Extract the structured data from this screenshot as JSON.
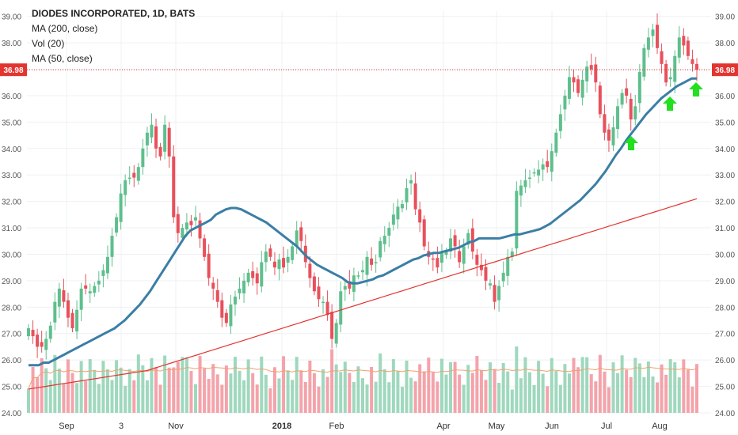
{
  "legend": {
    "title": "DIODES INCORPORATED, 1D, BATS",
    "ma200": "MA (200, close)",
    "vol": "Vol (20)",
    "ma50": "MA (50, close)"
  },
  "colors": {
    "up": "#5ebf8d",
    "down": "#e8505b",
    "vol_up": "#9fd8bd",
    "vol_down": "#f4a3aa",
    "ma50": "#3b7ea5",
    "ma200": "#e3342f",
    "vol_ma": "#f0a070",
    "last_price": "#e3342f",
    "arrow": "#22e01f",
    "grid": "#eef0f3"
  },
  "chart_data": {
    "type": "candlestick",
    "title": "DIODES INCORPORATED, 1D, BATS",
    "y_ticks": [
      "24.00",
      "25.00",
      "26.00",
      "27.00",
      "28.00",
      "29.00",
      "30.00",
      "31.00",
      "32.00",
      "33.00",
      "34.00",
      "35.00",
      "36.00",
      "37.00",
      "38.00",
      "39.00"
    ],
    "ylim": [
      24,
      39.2
    ],
    "x_ticks": [
      "Sep",
      "3",
      "Nov",
      "2018",
      "Feb",
      "Apr",
      "May",
      "Jun",
      "Jul",
      "Aug"
    ],
    "last_price": 36.98,
    "last_price_label": "36.98",
    "close": [
      27.2,
      26.9,
      26.5,
      26.5,
      26.8,
      27.3,
      28.2,
      28.7,
      28.2,
      27.6,
      27.2,
      27.9,
      28.7,
      28.7,
      28.6,
      28.8,
      29.0,
      29.4,
      29.9,
      30.7,
      31.4,
      32.3,
      32.8,
      32.9,
      32.9,
      33.3,
      34.0,
      34.6,
      34.9,
      34.0,
      33.7,
      34.9,
      33.7,
      31.4,
      30.8,
      31.0,
      31.2,
      31.1,
      31.4,
      30.6,
      29.9,
      29.1,
      28.7,
      28.2,
      27.6,
      27.4,
      28.1,
      28.4,
      28.7,
      29.0,
      29.3,
      29.1,
      28.9,
      29.7,
      30.1,
      29.9,
      29.5,
      29.8,
      29.5,
      29.9,
      30.3,
      30.9,
      30.5,
      29.7,
      29.1,
      28.6,
      28.3,
      28.2,
      27.7,
      26.8,
      27.4,
      28.6,
      28.8,
      28.7,
      29.2,
      29.2,
      29.4,
      29.9,
      29.6,
      29.7,
      30.5,
      30.7,
      31.0,
      31.5,
      31.8,
      31.9,
      32.5,
      32.8,
      31.7,
      31.2,
      30.3,
      29.9,
      29.8,
      29.5,
      30.1,
      30.1,
      30.6,
      30.3,
      29.7,
      30.3,
      30.8,
      30.1,
      29.6,
      29.4,
      29.0,
      28.9,
      28.2,
      28.8,
      29.3,
      29.9,
      30.1,
      32.4,
      32.6,
      32.8,
      32.9,
      33.1,
      33.2,
      33.4,
      33.3,
      33.9,
      34.6,
      35.3,
      36.0,
      36.7,
      36.5,
      36.1,
      36.6,
      37.1,
      37.0,
      36.5,
      35.3,
      34.6,
      34.3,
      34.8,
      35.6,
      36.1,
      36.0,
      35.1,
      35.6,
      36.9,
      37.8,
      38.2,
      38.5,
      37.8,
      37.2,
      36.5,
      36.7,
      37.5,
      38.2,
      37.9,
      37.5,
      37.2,
      36.98
    ],
    "ma50": [
      25.8,
      25.8,
      25.8,
      25.9,
      25.9,
      26.0,
      26.1,
      26.2,
      26.3,
      26.4,
      26.5,
      26.6,
      26.7,
      26.8,
      26.9,
      27.0,
      27.1,
      27.2,
      27.35,
      27.5,
      27.7,
      27.9,
      28.1,
      28.35,
      28.6,
      28.9,
      29.2,
      29.5,
      29.8,
      30.1,
      30.4,
      30.7,
      30.9,
      31.0,
      31.1,
      31.2,
      31.3,
      31.5,
      31.6,
      31.7,
      31.75,
      31.75,
      31.7,
      31.6,
      31.5,
      31.4,
      31.3,
      31.2,
      31.05,
      30.9,
      30.75,
      30.6,
      30.45,
      30.3,
      30.1,
      29.9,
      29.75,
      29.6,
      29.5,
      29.4,
      29.3,
      29.2,
      29.1,
      28.95,
      28.9,
      28.9,
      28.95,
      29.0,
      29.05,
      29.15,
      29.2,
      29.3,
      29.4,
      29.5,
      29.6,
      29.7,
      29.8,
      29.85,
      29.95,
      30.0,
      30.05,
      30.05,
      30.1,
      30.15,
      30.2,
      30.25,
      30.35,
      30.45,
      30.5,
      30.6,
      30.6,
      30.6,
      30.6,
      30.6,
      30.65,
      30.7,
      30.75,
      30.75,
      30.8,
      30.85,
      30.9,
      30.95,
      31.05,
      31.15,
      31.3,
      31.45,
      31.6,
      31.75,
      31.9,
      32.05,
      32.25,
      32.45,
      32.65,
      32.9,
      33.15,
      33.45,
      33.75,
      34.0,
      34.3,
      34.55,
      34.8,
      35.05,
      35.3,
      35.5,
      35.7,
      35.9,
      36.05,
      36.2,
      36.35,
      36.45,
      36.55,
      36.65,
      36.65
    ],
    "ma200": [
      24.9,
      24.95,
      25.0,
      25.05,
      25.1,
      25.15,
      25.2,
      25.25,
      25.3,
      25.35,
      25.4,
      25.45,
      25.5,
      25.55,
      25.6,
      25.7,
      25.8,
      25.9,
      26.0,
      26.1,
      26.2,
      26.3,
      26.4,
      26.5,
      26.6,
      26.7,
      26.8,
      26.9,
      27.0,
      27.1,
      27.2,
      27.3,
      27.4,
      27.5,
      27.6,
      27.7,
      27.8,
      27.9,
      28.0,
      28.1,
      28.2,
      28.3,
      28.4,
      28.5,
      28.6,
      28.7,
      28.8,
      28.9,
      29.0,
      29.1,
      29.2,
      29.3,
      29.4,
      29.5,
      29.6,
      29.7,
      29.8,
      29.9,
      30.0,
      30.1,
      30.2,
      30.3,
      30.4,
      30.5,
      30.6,
      30.7,
      30.8,
      30.9,
      31.0,
      31.1,
      31.2,
      31.3,
      31.4,
      31.5,
      31.6,
      31.7,
      31.8,
      31.9,
      32.0,
      32.1
    ],
    "annotations": [
      "up-arrow",
      "up-arrow",
      "up-arrow"
    ]
  }
}
